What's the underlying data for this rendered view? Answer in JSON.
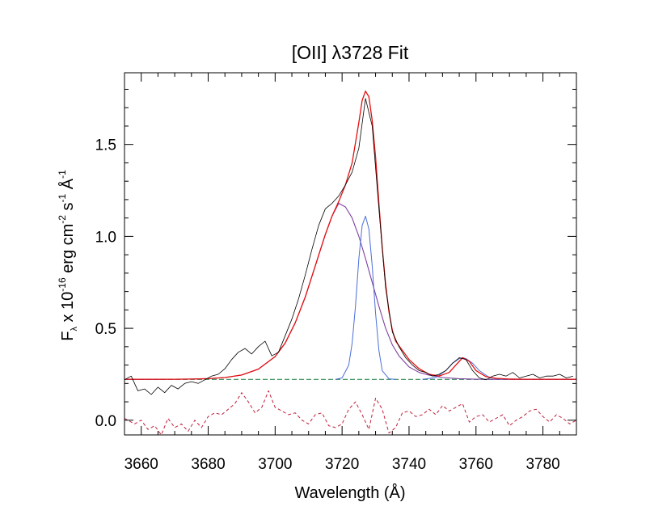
{
  "chart_data": {
    "type": "line",
    "title": "[OII] λ3728 Fit",
    "xlabel": "Wavelength (Å)",
    "ylabel": {
      "base": "F",
      "sub": "λ",
      "text1": " x 10",
      "exp1": "-16",
      "text2": " erg cm",
      "exp2": "-2",
      "text3": " s",
      "exp3": "-1",
      "text4": " Å",
      "exp4": "-1"
    },
    "xlim": [
      3655,
      3790
    ],
    "ylim": [
      -0.08,
      1.89
    ],
    "x_ticks": [
      3660,
      3680,
      3700,
      3720,
      3740,
      3760,
      3780
    ],
    "x_tick_labels": [
      "3660",
      "3680",
      "3700",
      "3720",
      "3740",
      "3760",
      "3780"
    ],
    "y_ticks": [
      0.0,
      0.5,
      1.0,
      1.5
    ],
    "y_tick_labels": [
      "0.0",
      "0.5",
      "1.0",
      "1.5"
    ],
    "grid": false,
    "legend": "none",
    "colors": {
      "data": "#000000",
      "total_fit": "#e41010",
      "components": "#4a6fd8",
      "broad_overlap": "#8040a0",
      "continuum": "#2e8b57",
      "residual": "#c0203c"
    },
    "series": [
      {
        "role": "observed-spectrum",
        "x": [
          3655,
          3657,
          3659,
          3661,
          3663,
          3665,
          3667,
          3669,
          3671,
          3673,
          3675,
          3677,
          3679,
          3681,
          3683,
          3685,
          3687,
          3689,
          3691,
          3693,
          3695,
          3697,
          3699,
          3701,
          3703,
          3705,
          3707,
          3709,
          3711,
          3713,
          3715,
          3717,
          3719,
          3721,
          3723,
          3725,
          3727,
          3729,
          3731,
          3733,
          3735,
          3737,
          3739,
          3741,
          3743,
          3745,
          3747,
          3749,
          3751,
          3753,
          3755,
          3757,
          3759,
          3761,
          3763,
          3765,
          3767,
          3769,
          3771,
          3773,
          3775,
          3777,
          3779,
          3781,
          3783,
          3785,
          3787,
          3789
        ],
        "y": [
          0.22,
          0.24,
          0.16,
          0.17,
          0.14,
          0.18,
          0.15,
          0.19,
          0.17,
          0.2,
          0.21,
          0.2,
          0.22,
          0.24,
          0.25,
          0.28,
          0.33,
          0.37,
          0.39,
          0.36,
          0.4,
          0.43,
          0.35,
          0.37,
          0.46,
          0.55,
          0.66,
          0.79,
          0.93,
          1.06,
          1.15,
          1.18,
          1.22,
          1.28,
          1.35,
          1.48,
          1.75,
          1.6,
          1.15,
          0.72,
          0.48,
          0.4,
          0.34,
          0.3,
          0.27,
          0.26,
          0.24,
          0.25,
          0.27,
          0.31,
          0.34,
          0.33,
          0.27,
          0.23,
          0.22,
          0.24,
          0.25,
          0.24,
          0.26,
          0.23,
          0.24,
          0.25,
          0.23,
          0.24,
          0.24,
          0.25,
          0.23,
          0.24
        ]
      },
      {
        "role": "total-fit",
        "x": [
          3655,
          3660,
          3665,
          3670,
          3675,
          3680,
          3685,
          3690,
          3695,
          3700,
          3703,
          3706,
          3709,
          3712,
          3715,
          3717,
          3719,
          3721,
          3723,
          3725,
          3726,
          3727,
          3728,
          3729,
          3730,
          3731,
          3732,
          3733,
          3734,
          3735,
          3736,
          3738,
          3740,
          3743,
          3746,
          3749,
          3752,
          3754,
          3756,
          3758,
          3760,
          3763,
          3766,
          3770,
          3775,
          3780,
          3785,
          3790
        ],
        "y": [
          0.223,
          0.223,
          0.223,
          0.223,
          0.224,
          0.226,
          0.232,
          0.246,
          0.278,
          0.346,
          0.42,
          0.53,
          0.67,
          0.84,
          1.01,
          1.11,
          1.19,
          1.28,
          1.4,
          1.62,
          1.74,
          1.79,
          1.76,
          1.63,
          1.43,
          1.18,
          0.94,
          0.74,
          0.59,
          0.49,
          0.43,
          0.38,
          0.33,
          0.28,
          0.25,
          0.24,
          0.26,
          0.3,
          0.34,
          0.32,
          0.27,
          0.237,
          0.228,
          0.224,
          0.223,
          0.223,
          0.223,
          0.223
        ]
      },
      {
        "role": "broad-component",
        "x": [
          3655,
          3660,
          3665,
          3670,
          3675,
          3680,
          3685,
          3690,
          3695,
          3700,
          3703,
          3706,
          3709,
          3712,
          3715,
          3717,
          3719,
          3721,
          3723,
          3725,
          3727,
          3729,
          3731,
          3733,
          3735,
          3737,
          3740,
          3743,
          3746,
          3750,
          3755,
          3760,
          3770,
          3780,
          3790
        ],
        "y": [
          0.222,
          0.222,
          0.222,
          0.223,
          0.224,
          0.226,
          0.232,
          0.246,
          0.278,
          0.346,
          0.42,
          0.53,
          0.67,
          0.84,
          1.01,
          1.11,
          1.18,
          1.16,
          1.1,
          1.0,
          0.88,
          0.75,
          0.62,
          0.5,
          0.41,
          0.35,
          0.29,
          0.26,
          0.245,
          0.232,
          0.226,
          0.223,
          0.222,
          0.222,
          0.222
        ]
      },
      {
        "role": "narrow-component",
        "x": [
          3718,
          3720,
          3722,
          3723,
          3724,
          3725,
          3726,
          3727,
          3728,
          3729,
          3730,
          3731,
          3732,
          3734,
          3736
        ],
        "y": [
          0.222,
          0.23,
          0.3,
          0.42,
          0.62,
          0.88,
          1.06,
          1.11,
          1.04,
          0.84,
          0.58,
          0.38,
          0.27,
          0.225,
          0.222
        ]
      },
      {
        "role": "small-component",
        "x": [
          3744,
          3748,
          3751,
          3753,
          3755,
          3756,
          3757,
          3759,
          3761,
          3764,
          3768
        ],
        "y": [
          0.222,
          0.232,
          0.27,
          0.31,
          0.335,
          0.34,
          0.335,
          0.31,
          0.27,
          0.232,
          0.222
        ]
      },
      {
        "role": "continuum",
        "x": [
          3655,
          3790
        ],
        "y": [
          0.222,
          0.222
        ]
      },
      {
        "role": "residual",
        "x": [
          3655,
          3658,
          3660,
          3662,
          3664,
          3666,
          3668,
          3670,
          3672,
          3674,
          3676,
          3678,
          3680,
          3682,
          3684,
          3686,
          3688,
          3690,
          3692,
          3694,
          3696,
          3698,
          3700,
          3702,
          3704,
          3706,
          3708,
          3710,
          3712,
          3714,
          3716,
          3718,
          3720,
          3722,
          3724,
          3726,
          3728,
          3730,
          3732,
          3734,
          3736,
          3738,
          3740,
          3742,
          3744,
          3746,
          3748,
          3750,
          3752,
          3754,
          3756,
          3758,
          3760,
          3762,
          3764,
          3766,
          3768,
          3770,
          3772,
          3774,
          3776,
          3778,
          3780,
          3782,
          3784,
          3786,
          3788,
          3790
        ],
        "y": [
          0.01,
          -0.02,
          0.0,
          -0.05,
          -0.03,
          -0.08,
          0.01,
          -0.04,
          -0.02,
          -0.06,
          0.0,
          -0.04,
          0.02,
          0.04,
          0.03,
          0.06,
          0.09,
          0.15,
          0.1,
          0.04,
          0.07,
          0.16,
          0.07,
          0.05,
          0.03,
          0.04,
          0.0,
          -0.02,
          0.03,
          0.04,
          -0.03,
          -0.04,
          -0.02,
          0.06,
          0.1,
          0.03,
          -0.05,
          0.12,
          0.06,
          -0.07,
          -0.04,
          0.04,
          0.05,
          0.02,
          0.03,
          0.06,
          0.03,
          0.08,
          0.05,
          0.07,
          0.09,
          -0.01,
          0.02,
          0.03,
          -0.01,
          0.01,
          0.03,
          -0.03,
          0.0,
          0.02,
          0.05,
          0.06,
          0.02,
          -0.01,
          0.03,
          0.01,
          -0.02,
          0.0
        ]
      }
    ]
  }
}
